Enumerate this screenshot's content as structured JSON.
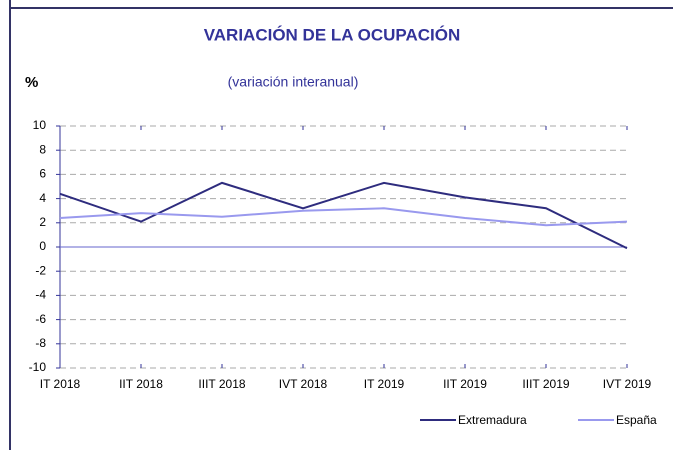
{
  "chart_data": {
    "type": "line",
    "title": "VARIACIÓN DE LA OCUPACIÓN",
    "subtitle": "(variación interanual)",
    "y_label": "%",
    "categories": [
      "IT 2018",
      "IIT 2018",
      "IIIT 2018",
      "IVT 2018",
      "IT 2019",
      "IIT 2019",
      "IIIT 2019",
      "IVT 2019"
    ],
    "series": [
      {
        "name": "Extremadura",
        "color": "#2e2c7e",
        "values": [
          4.4,
          2.1,
          5.3,
          3.2,
          5.3,
          4.1,
          3.2,
          -0.1
        ]
      },
      {
        "name": "España",
        "color": "#9999ee",
        "values": [
          2.4,
          2.8,
          2.5,
          3.0,
          3.2,
          2.4,
          1.8,
          2.1
        ]
      }
    ],
    "ylim": [
      -10,
      10
    ],
    "yticks": [
      -10,
      -8,
      -6,
      -4,
      -2,
      0,
      2,
      4,
      6,
      8,
      10
    ],
    "grid": true,
    "legend": "bottom-right"
  }
}
